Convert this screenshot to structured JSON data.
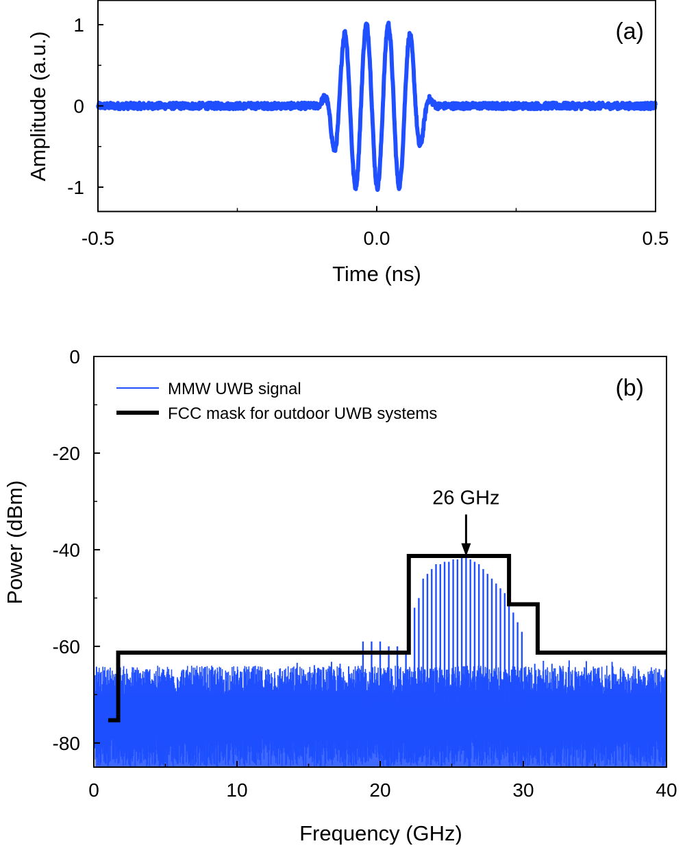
{
  "chart_data": [
    {
      "type": "line",
      "panel_label": "(a)",
      "xlabel": "Time (ns)",
      "ylabel": "Amplitude (a.u.)",
      "xlim": [
        -0.5,
        0.5
      ],
      "ylim": [
        -1.3,
        1.3
      ],
      "x_ticks": [
        -0.5,
        0.0,
        0.5
      ],
      "x_tick_labels": [
        "-0.5",
        "0.0",
        "0.5"
      ],
      "y_ticks": [
        -1,
        0,
        1
      ],
      "y_tick_labels": [
        "-1",
        "0",
        "1"
      ],
      "grid": false,
      "series": [
        {
          "color": "#1f4fff",
          "x": [
            -0.5,
            -0.4,
            -0.3,
            -0.2,
            -0.15,
            -0.14,
            -0.125,
            -0.11,
            -0.098,
            -0.088,
            -0.077,
            -0.066,
            -0.057,
            -0.047,
            -0.037,
            -0.028,
            -0.018,
            -0.008,
            0.001,
            0.011,
            0.021,
            0.03,
            0.04,
            0.05,
            0.059,
            0.069,
            0.078,
            0.088,
            0.098,
            0.108,
            0.12,
            0.13,
            0.14,
            0.16,
            0.2,
            0.3,
            0.4,
            0.5
          ],
          "y": [
            0,
            0,
            0,
            0,
            0.01,
            0.1,
            -0.48,
            0.2,
            0.85,
            -0.3,
            -0.9,
            0.3,
            0.98,
            -0.3,
            -0.96,
            0.3,
            1.0,
            -0.3,
            -0.97,
            0.3,
            1.0,
            -0.3,
            -0.98,
            0.3,
            1.0,
            -0.3,
            -1.0,
            0.3,
            0.98,
            -0.3,
            -0.3,
            0.15,
            0.02,
            0,
            0,
            0,
            0,
            0
          ]
        }
      ]
    },
    {
      "type": "line",
      "panel_label": "(b)",
      "xlabel": "Frequency (GHz)",
      "ylabel": "Power (dBm)",
      "xlim": [
        0,
        40
      ],
      "ylim": [
        -85,
        0
      ],
      "x_ticks": [
        0,
        10,
        20,
        30,
        40
      ],
      "x_tick_labels": [
        "0",
        "10",
        "20",
        "30",
        "40"
      ],
      "y_ticks": [
        0,
        -20,
        -40,
        -60,
        -80
      ],
      "y_tick_labels": [
        "0",
        "-20",
        "-40",
        "-60",
        "-80"
      ],
      "grid": false,
      "legend_position": "top-left",
      "series": [
        {
          "name": "MMW UWB signal",
          "color": "#1f4fff",
          "noise_floor_range": [
            -70,
            -64
          ],
          "peak_spacing_ghz": 0.6,
          "peaks": [
            [
              18.8,
              -59
            ],
            [
              19.4,
              -59
            ],
            [
              20.0,
              -59
            ],
            [
              20.6,
              -60
            ],
            [
              21.2,
              -60
            ],
            [
              21.8,
              -61
            ],
            [
              22.4,
              -52
            ],
            [
              22.7,
              -50
            ],
            [
              23.0,
              -46
            ],
            [
              23.3,
              -45
            ],
            [
              23.6,
              -44
            ],
            [
              23.9,
              -43
            ],
            [
              24.2,
              -43
            ],
            [
              24.5,
              -42.5
            ],
            [
              24.8,
              -42.5
            ],
            [
              25.1,
              -42
            ],
            [
              25.4,
              -42
            ],
            [
              25.7,
              -41.5
            ],
            [
              26.0,
              -41.5
            ],
            [
              26.3,
              -42
            ],
            [
              26.6,
              -42.5
            ],
            [
              26.9,
              -43
            ],
            [
              27.2,
              -44
            ],
            [
              27.5,
              -45
            ],
            [
              27.8,
              -46
            ],
            [
              28.1,
              -47
            ],
            [
              28.4,
              -48
            ],
            [
              28.7,
              -49
            ],
            [
              29.0,
              -51
            ],
            [
              29.3,
              -53
            ],
            [
              29.6,
              -55
            ],
            [
              29.9,
              -57
            ]
          ]
        },
        {
          "name": "FCC mask for outdoor UWB systems",
          "color": "#000000",
          "x": [
            1.0,
            1.7,
            1.7,
            22.0,
            22.0,
            29.0,
            29.0,
            31.0,
            31.0,
            40.0
          ],
          "y": [
            -75.3,
            -75.3,
            -61.3,
            -61.3,
            -41.3,
            -41.3,
            -51.3,
            -51.3,
            -61.3,
            -61.3
          ]
        }
      ],
      "annotations": [
        {
          "text": "26 GHz",
          "x": 26,
          "y": -41.5
        }
      ]
    }
  ]
}
